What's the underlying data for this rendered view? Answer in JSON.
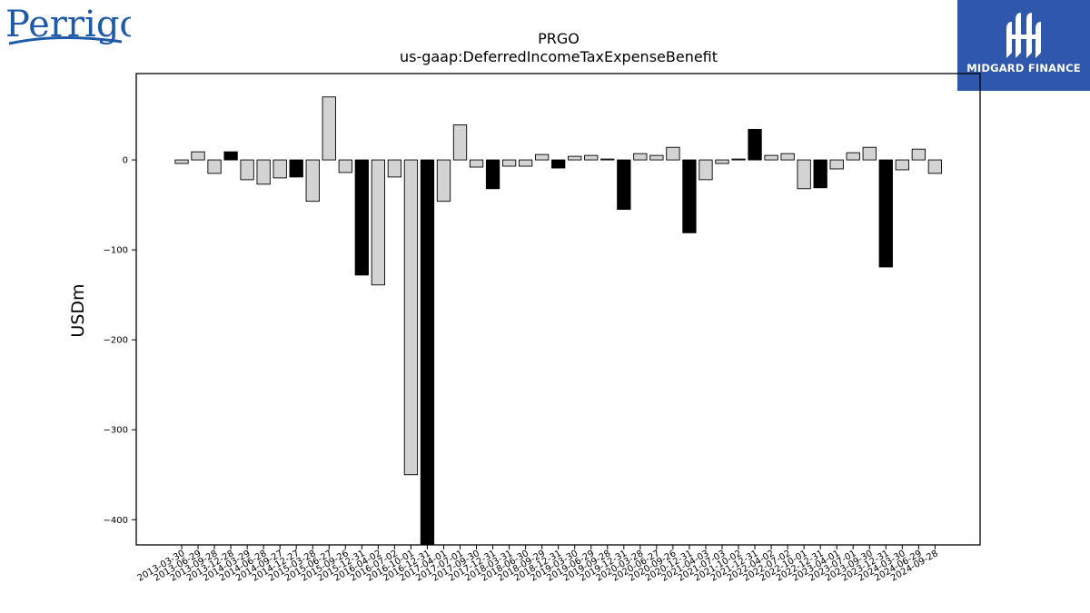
{
  "header": {
    "company_logo_text": "Perrigo",
    "brand_name": "MIDGARD FINANCE"
  },
  "colors": {
    "brand_box": "#2f57ab",
    "logo_blue": "#1f5aa8",
    "bar_positive": "#d3d3d3",
    "bar_negative": "#000000"
  },
  "chart_data": {
    "type": "bar",
    "title": "PRGO",
    "subtitle": "us-gaap:DeferredIncomeTaxExpenseBenefit",
    "xlabel": "",
    "ylabel": "USDm",
    "ylim": [
      -428,
      96
    ],
    "yticks": [
      0,
      -100,
      -200,
      -300,
      -400
    ],
    "grid": false,
    "categories": [
      "2013-03-30",
      "2013-06-29",
      "2013-09-28",
      "2013-12-28",
      "2014-03-29",
      "2014-06-28",
      "2014-09-27",
      "2014-12-27",
      "2015-03-28",
      "2015-06-27",
      "2015-09-26",
      "2015-12-31",
      "2016-04-02",
      "2016-07-02",
      "2016-10-01",
      "2016-12-31",
      "2017-04-01",
      "2017-07-01",
      "2017-09-30",
      "2017-12-31",
      "2018-03-31",
      "2018-06-30",
      "2018-09-29",
      "2018-12-31",
      "2019-03-30",
      "2019-06-29",
      "2019-09-28",
      "2019-12-31",
      "2020-03-28",
      "2020-06-27",
      "2020-09-26",
      "2020-12-31",
      "2021-04-03",
      "2021-07-03",
      "2021-10-02",
      "2021-12-31",
      "2022-04-02",
      "2022-07-02",
      "2022-10-01",
      "2022-12-31",
      "2023-04-01",
      "2023-07-01",
      "2023-09-30",
      "2023-12-31",
      "2024-03-30",
      "2024-06-29",
      "2024-09-28"
    ],
    "values": [
      -4,
      9,
      -15,
      9,
      -22,
      -27,
      -20,
      -19,
      -46,
      70,
      -14,
      -128,
      -139,
      -19,
      -350,
      -430,
      -46,
      39,
      -8,
      -32,
      -7,
      -7,
      6,
      -9,
      4,
      5,
      1,
      -55,
      7,
      5,
      14,
      -81,
      -22,
      -4,
      1,
      34,
      5,
      7,
      -32,
      -31,
      -10,
      8,
      14,
      -119,
      -11,
      12,
      -15
    ],
    "bar_color_flags": [
      0,
      0,
      0,
      1,
      0,
      0,
      0,
      1,
      0,
      0,
      0,
      1,
      0,
      0,
      0,
      1,
      0,
      0,
      0,
      1,
      0,
      0,
      0,
      1,
      0,
      0,
      0,
      1,
      0,
      0,
      0,
      1,
      0,
      0,
      0,
      1,
      0,
      0,
      0,
      1,
      0,
      0,
      0,
      1,
      0,
      0,
      0
    ]
  }
}
